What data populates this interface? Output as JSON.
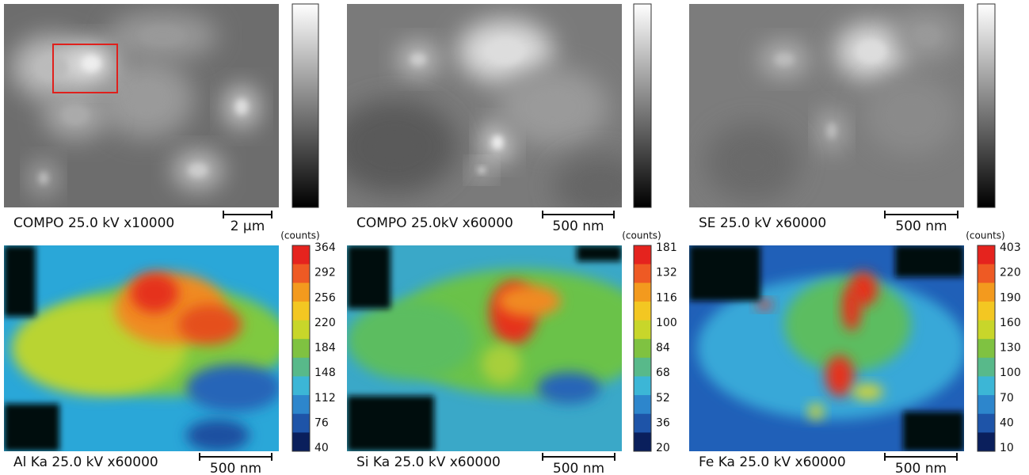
{
  "panels": [
    {
      "caption": "COMPO 25.0 kV x10000",
      "scale_bar": "2 µm"
    },
    {
      "caption": "COMPO 25.0kV x60000",
      "scale_bar": "500 nm"
    },
    {
      "caption": "SE 25.0 kV x60000",
      "scale_bar": "500 nm"
    },
    {
      "caption": "Al Ka 25.0 kV x60000",
      "scale_bar": "500 nm",
      "colorbar": {
        "unit": "(counts)",
        "ticks": [
          364,
          292,
          256,
          220,
          184,
          148,
          112,
          76,
          40
        ]
      }
    },
    {
      "caption": "Si Ka 25.0 kV x60000",
      "scale_bar": "500 nm",
      "colorbar": {
        "unit": "(counts)",
        "ticks": [
          181,
          132,
          116,
          100,
          84,
          68,
          52,
          36,
          20
        ]
      }
    },
    {
      "caption": "Fe Ka 25.0 kV x60000",
      "scale_bar": "500 nm",
      "colorbar": {
        "unit": "(counts)",
        "ticks": [
          403,
          220,
          190,
          160,
          130,
          100,
          70,
          40,
          10
        ]
      }
    }
  ]
}
